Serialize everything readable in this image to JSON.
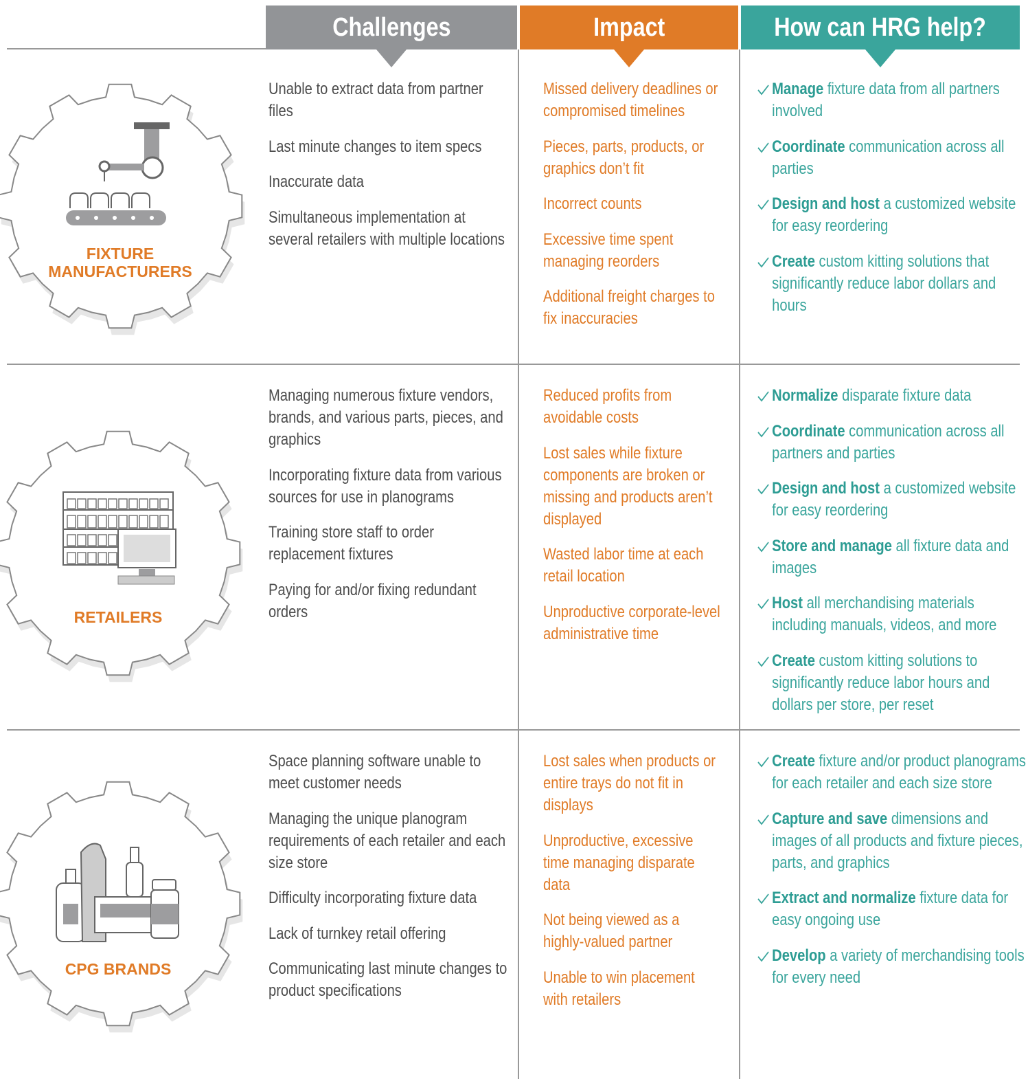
{
  "header": {
    "columns": [
      "Challenges",
      "Impact",
      "How can HRG help?"
    ]
  },
  "rows": [
    {
      "label": "FIXTURE MANUFACTURERS",
      "challenges": [
        "Unable to extract data from partner files",
        "Last minute changes to item specs",
        "Inaccurate data",
        "Simultaneous implementation at several retailers with multiple locations"
      ],
      "impacts": [
        "Missed delivery deadlines or compromised timelines",
        "Pieces, parts, products, or graphics don’t fit",
        "Incorrect counts",
        "Excessive time spent managing reorders",
        "Additional freight charges to fix inaccuracies"
      ],
      "help": [
        {
          "bold": "Manage",
          "text": "fixture data from all partners involved"
        },
        {
          "bold": "Coordinate",
          "text": "communication across all parties"
        },
        {
          "bold": "Design and host",
          "text": "a customized website for easy reordering"
        },
        {
          "bold": "Create",
          "text": "custom kitting solutions that significantly reduce labor dollars and hours"
        }
      ]
    },
    {
      "label": "RETAILERS",
      "challenges": [
        "Managing numerous fixture vendors, brands, and various parts, pieces, and graphics",
        "Incorporating fixture data from various sources for use in planograms",
        "Training store staff to order replacement fixtures",
        "Paying for and/or fixing redundant orders"
      ],
      "impacts": [
        "Reduced profits from avoidable costs",
        "Lost sales while fixture components are broken or missing and products aren’t displayed",
        "Wasted labor time at each retail location",
        "Unproductive corporate-level administrative time"
      ],
      "help": [
        {
          "bold": "Normalize",
          "text": "disparate fixture data"
        },
        {
          "bold": "Coordinate",
          "text": "communication across all partners and parties"
        },
        {
          "bold": "Design and host",
          "text": "a customized website for easy reordering"
        },
        {
          "bold": "Store and manage",
          "text": "all fixture data and images"
        },
        {
          "bold": "Host",
          "text": "all merchandising materials including manuals, videos, and more"
        },
        {
          "bold": "Create",
          "text": "custom kitting solutions to significantly reduce labor hours and dollars per store, per reset"
        }
      ]
    },
    {
      "label": "CPG BRANDS",
      "challenges": [
        "Space planning software unable to meet customer needs",
        "Managing the unique planogram requirements of each retailer and each size store",
        "Difficulty incorporating fixture data",
        "Lack of turnkey retail offering",
        "Communicating last minute changes to product specifications"
      ],
      "impacts": [
        "Lost sales when products or entire trays do not fit in displays",
        "Unproductive, excessive time managing disparate data",
        "Not being viewed as a highly-valued partner",
        "Unable to win placement with retailers"
      ],
      "help": [
        {
          "bold": "Create",
          "text": "fixture and/or product planograms for each retailer and each size store"
        },
        {
          "bold": "Capture and save",
          "text": "dimensions and images of all products and fixture pieces, parts, and graphics"
        },
        {
          "bold": "Extract and normalize",
          "text": "fixture data for easy ongoing use"
        },
        {
          "bold": "Develop",
          "text": "a variety of merchandising tools for every need"
        }
      ]
    }
  ]
}
